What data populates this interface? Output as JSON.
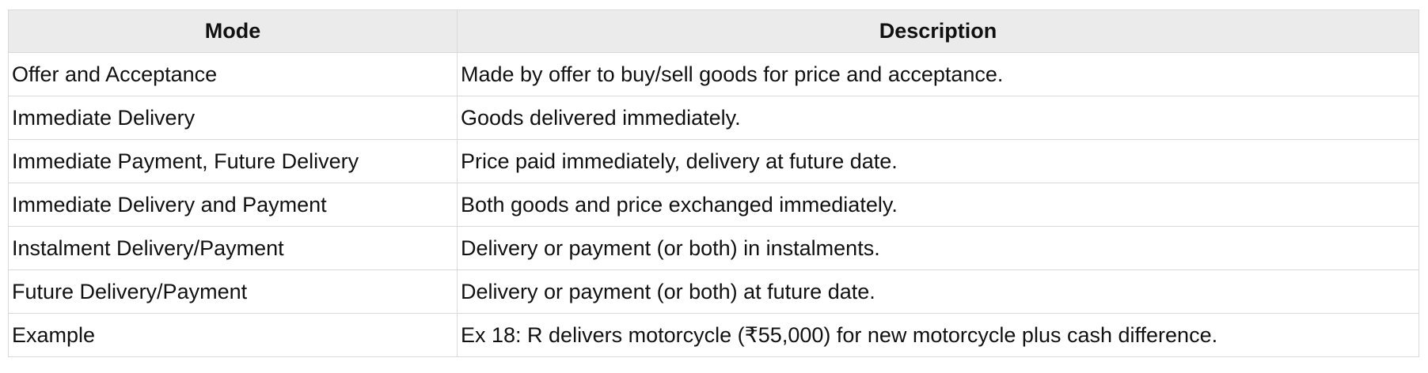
{
  "table": {
    "headers": {
      "mode": "Mode",
      "description": "Description"
    },
    "rows": [
      {
        "mode": "Offer and Acceptance",
        "description": "Made by offer to buy/sell goods for price and acceptance."
      },
      {
        "mode": "Immediate Delivery",
        "description": "Goods delivered immediately."
      },
      {
        "mode": "Immediate Payment, Future Delivery",
        "description": "Price paid immediately, delivery at future date."
      },
      {
        "mode": "Immediate Delivery and Payment",
        "description": "Both goods and price exchanged immediately."
      },
      {
        "mode": "Instalment Delivery/Payment",
        "description": "Delivery or payment (or both) in instalments."
      },
      {
        "mode": "Future Delivery/Payment",
        "description": "Delivery or payment (or both) at future date."
      },
      {
        "mode": "Example",
        "description": "Ex 18: R delivers motorcycle (₹55,000) for new motorcycle plus cash difference."
      }
    ],
    "colors": {
      "header_bg": "#ebebeb",
      "border": "#d9d9d9",
      "text": "#111111",
      "row_bg": "#ffffff"
    }
  }
}
